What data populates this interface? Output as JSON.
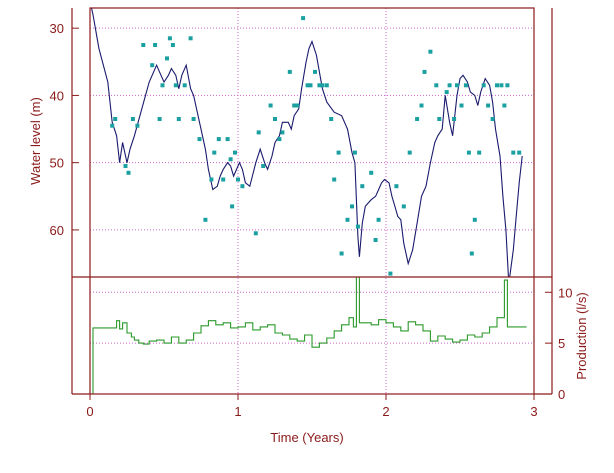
{
  "chart_data": [
    {
      "type": "scatter",
      "panel": "upper",
      "ylabel": "Water level (m)",
      "y_inverted": true,
      "xlim": [
        0,
        3
      ],
      "ylim": [
        67,
        27
      ],
      "y_ticks": [
        30,
        40,
        50,
        60
      ],
      "grid": true,
      "series": [
        {
          "name": "",
          "style": "line",
          "x": [
            0,
            0.02,
            0.06,
            0.12,
            0.15,
            0.18,
            0.2,
            0.22,
            0.25,
            0.27,
            0.3,
            0.35,
            0.4,
            0.45,
            0.48,
            0.5,
            0.53,
            0.55,
            0.58,
            0.6,
            0.62,
            0.65,
            0.68,
            0.7,
            0.75,
            0.78,
            0.8,
            0.83,
            0.86,
            0.88,
            0.9,
            0.93,
            0.95,
            0.97,
            0.99,
            1.01,
            1.03,
            1.05,
            1.08,
            1.12,
            1.15,
            1.18,
            1.2,
            1.23,
            1.25,
            1.28,
            1.3,
            1.34,
            1.36,
            1.38,
            1.41,
            1.43,
            1.46,
            1.48,
            1.5,
            1.53,
            1.57,
            1.6,
            1.65,
            1.7,
            1.74,
            1.77,
            1.79,
            1.81,
            1.82,
            1.84,
            1.86,
            1.88,
            1.9,
            1.93,
            1.95,
            1.97,
            1.99,
            2.02,
            2.04,
            2.06,
            2.08,
            2.1,
            2.12,
            2.15,
            2.18,
            2.21,
            2.24,
            2.27,
            2.3,
            2.33,
            2.35,
            2.38,
            2.4,
            2.43,
            2.45,
            2.48,
            2.5,
            2.52,
            2.55,
            2.57,
            2.6,
            2.62,
            2.64,
            2.67,
            2.7,
            2.72,
            2.74,
            2.77,
            2.79,
            2.81,
            2.83,
            2.86,
            2.88,
            2.9,
            2.92
          ],
          "y": [
            26,
            28,
            33,
            38,
            44,
            46,
            50,
            47,
            50,
            48,
            46,
            42,
            38,
            35.5,
            37,
            38,
            37,
            36,
            37,
            39,
            37,
            35.5,
            39,
            40,
            45,
            48,
            51,
            54,
            53.5,
            52,
            51,
            50,
            50.5,
            52,
            51,
            50,
            51,
            53,
            53.5,
            50,
            48,
            50,
            51,
            49,
            47,
            46,
            44,
            44,
            45,
            43,
            42,
            39,
            35,
            33,
            32,
            34,
            39,
            41,
            42.5,
            43,
            45,
            48.5,
            50,
            61,
            64,
            59,
            56.5,
            56,
            55.5,
            55,
            54,
            53,
            52.5,
            53,
            55,
            56.5,
            58,
            58.5,
            62,
            65,
            63,
            59,
            55,
            53.5,
            50,
            47,
            46,
            45,
            40,
            44,
            46,
            40,
            37.5,
            37,
            38,
            39.5,
            40,
            41.5,
            39.5,
            37.5,
            38.5,
            41,
            45,
            49,
            55,
            60,
            68,
            63,
            58,
            53,
            49
          ]
        },
        {
          "name": "",
          "style": "markers",
          "x": [
            0.15,
            0.17,
            0.24,
            0.26,
            0.29,
            0.32,
            0.36,
            0.42,
            0.44,
            0.47,
            0.49,
            0.52,
            0.54,
            0.56,
            0.58,
            0.6,
            0.64,
            0.68,
            0.7,
            0.74,
            0.78,
            0.82,
            0.84,
            0.87,
            0.9,
            0.93,
            0.95,
            0.96,
            0.98,
            1.0,
            1.03,
            1.12,
            1.14,
            1.17,
            1.22,
            1.25,
            1.28,
            1.3,
            1.35,
            1.38,
            1.4,
            1.44,
            1.47,
            1.49,
            1.52,
            1.55,
            1.57,
            1.6,
            1.63,
            1.65,
            1.68,
            1.7,
            1.74,
            1.77,
            1.79,
            1.81,
            1.84,
            1.9,
            1.93,
            1.95,
            2.03,
            2.07,
            2.12,
            2.16,
            2.21,
            2.24,
            2.26,
            2.3,
            2.34,
            2.36,
            2.41,
            2.43,
            2.46,
            2.48,
            2.51,
            2.54,
            2.56,
            2.58,
            2.6,
            2.63,
            2.66,
            2.69,
            2.72,
            2.75,
            2.78,
            2.8,
            2.82,
            2.86,
            2.9
          ],
          "y": [
            44.5,
            43.5,
            50.5,
            51.5,
            43.5,
            44.5,
            32.5,
            35.5,
            32.5,
            43.5,
            38.5,
            34.5,
            31.5,
            32.5,
            38.5,
            43.5,
            38.5,
            31.5,
            43.5,
            46.5,
            58.5,
            52.5,
            48.5,
            46.5,
            52.5,
            46.5,
            49.5,
            56.5,
            48.5,
            52.5,
            53.5,
            60.5,
            45.5,
            50.5,
            41.5,
            43.5,
            46.5,
            45.5,
            36.5,
            41.5,
            41.5,
            28.5,
            38.5,
            38.5,
            36.5,
            38.5,
            38.5,
            38.5,
            43.5,
            52.5,
            48.5,
            63.5,
            58.5,
            56.5,
            48.5,
            59.5,
            53.5,
            51.5,
            61.5,
            58.5,
            66.5,
            53.5,
            56.5,
            48.5,
            43.5,
            41.5,
            36.5,
            33.5,
            38.5,
            43.5,
            39.5,
            38.5,
            43.5,
            38.5,
            41.5,
            38.5,
            48.5,
            63.5,
            58.5,
            48.5,
            38.5,
            41.5,
            43.5,
            38.5,
            38.5,
            41.5,
            38.5,
            48.5,
            48.5
          ]
        }
      ]
    },
    {
      "type": "line",
      "panel": "lower",
      "xlabel": "Time (Years)",
      "ylabel": "Production (l/s)",
      "ylim": [
        0,
        11.5
      ],
      "y_ticks": [
        0,
        5,
        10
      ],
      "x_ticks": [
        0,
        1,
        2,
        3
      ],
      "xlim": [
        0,
        3
      ],
      "grid": true,
      "series": [
        {
          "name": "",
          "style": "step",
          "x": [
            0,
            0.02,
            0.02,
            0.15,
            0.18,
            0.2,
            0.22,
            0.25,
            0.28,
            0.3,
            0.33,
            0.36,
            0.4,
            0.45,
            0.5,
            0.55,
            0.6,
            0.65,
            0.7,
            0.75,
            0.8,
            0.85,
            0.9,
            0.95,
            1.0,
            1.05,
            1.1,
            1.15,
            1.2,
            1.25,
            1.3,
            1.35,
            1.4,
            1.45,
            1.5,
            1.55,
            1.6,
            1.65,
            1.7,
            1.75,
            1.78,
            1.8,
            1.82,
            1.86,
            1.9,
            1.95,
            2.0,
            2.05,
            2.1,
            2.15,
            2.2,
            2.25,
            2.3,
            2.35,
            2.4,
            2.45,
            2.5,
            2.55,
            2.6,
            2.65,
            2.7,
            2.75,
            2.8,
            2.82,
            2.84,
            2.95
          ],
          "y": [
            0,
            0,
            6.5,
            6.5,
            7.2,
            6.4,
            7.0,
            6.0,
            5.6,
            5.3,
            5.0,
            4.9,
            5.2,
            5.3,
            5.0,
            5.6,
            5.0,
            5.3,
            6.0,
            6.7,
            7.2,
            6.8,
            7.0,
            6.5,
            6.6,
            7.0,
            6.3,
            6.6,
            6.8,
            6.0,
            5.8,
            5.4,
            5.2,
            5.8,
            4.6,
            5.0,
            5.5,
            6.2,
            6.8,
            7.5,
            6.6,
            11.5,
            7.0,
            7.0,
            6.8,
            7.3,
            7.0,
            6.6,
            6.2,
            7.1,
            6.8,
            6.2,
            5.2,
            5.7,
            5.4,
            5.1,
            5.3,
            5.8,
            5.6,
            6.0,
            6.6,
            7.5,
            11.2,
            6.6,
            6.6,
            6.6
          ]
        }
      ]
    }
  ],
  "labels": {
    "upper_y_ticks": [
      "30",
      "40",
      "50",
      "60"
    ],
    "lower_y_ticks": [
      "10",
      "5",
      "0"
    ],
    "x_ticks": [
      "0",
      "1",
      "2",
      "3"
    ],
    "xlabel": "Time (Years)",
    "ylabel_left": "Water level (m)",
    "ylabel_right": "Production (l/s)"
  },
  "colors": {
    "axes": "#8b1a1a",
    "grid": "#cc66cc",
    "level_line": "#1a1a6e",
    "markers": "#1aa0a0",
    "production": "#2a9a2a",
    "text": "#8b1a1a"
  }
}
